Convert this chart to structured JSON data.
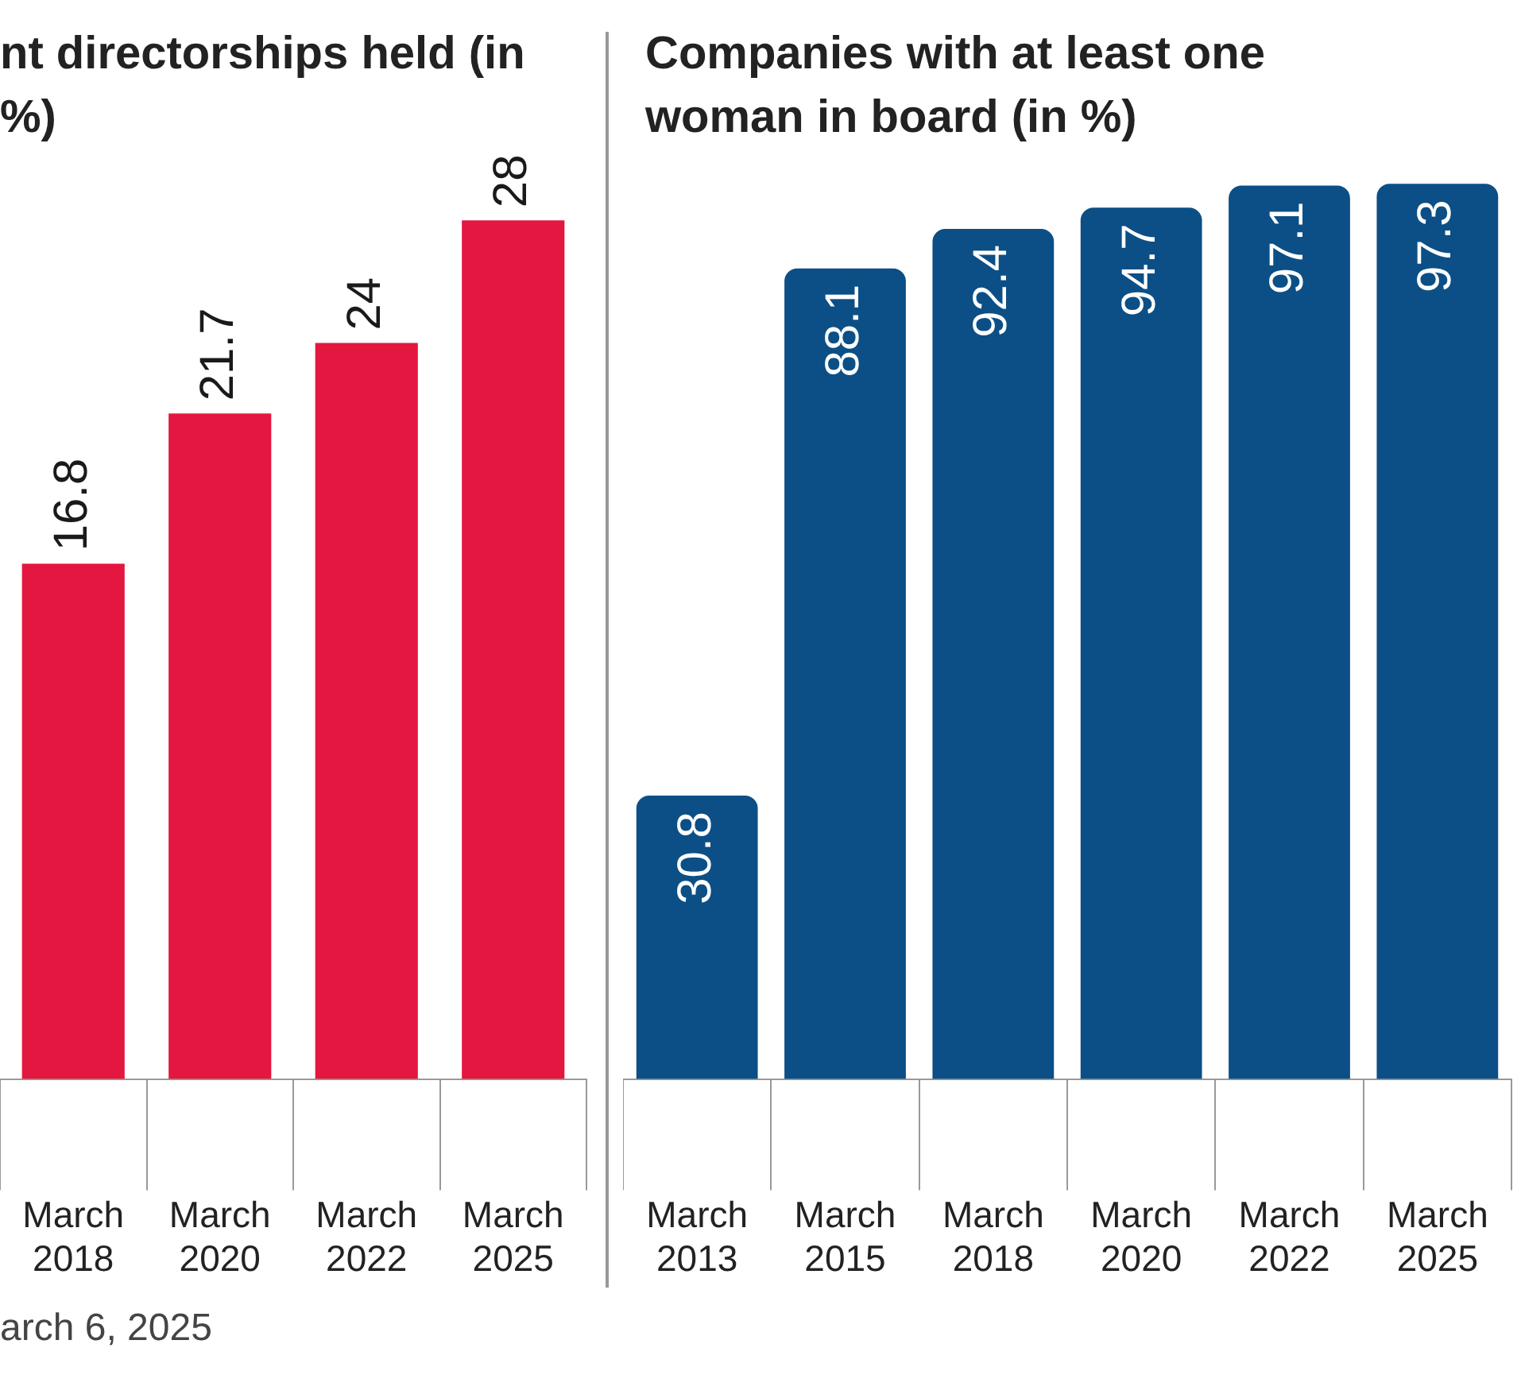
{
  "chart_data": [
    {
      "type": "bar",
      "title": "nt directorships held (in %)",
      "categories": [
        "March 2018",
        "March 2020",
        "March 2022",
        "March 2025"
      ],
      "values": [
        16.8,
        21.7,
        24,
        28
      ],
      "color": "#e3173f",
      "data_labels": true,
      "annotations": [
        "arch 6, 2025"
      ]
    },
    {
      "type": "bar",
      "title": "Companies with at least one woman in board (in %)",
      "categories": [
        "March 2013",
        "March 2015",
        "March 2018",
        "March 2020",
        "March 2022",
        "March 2025"
      ],
      "values": [
        30.8,
        88.1,
        92.4,
        94.7,
        97.1,
        97.3
      ],
      "color": "#0b4f86",
      "data_labels": true
    }
  ]
}
